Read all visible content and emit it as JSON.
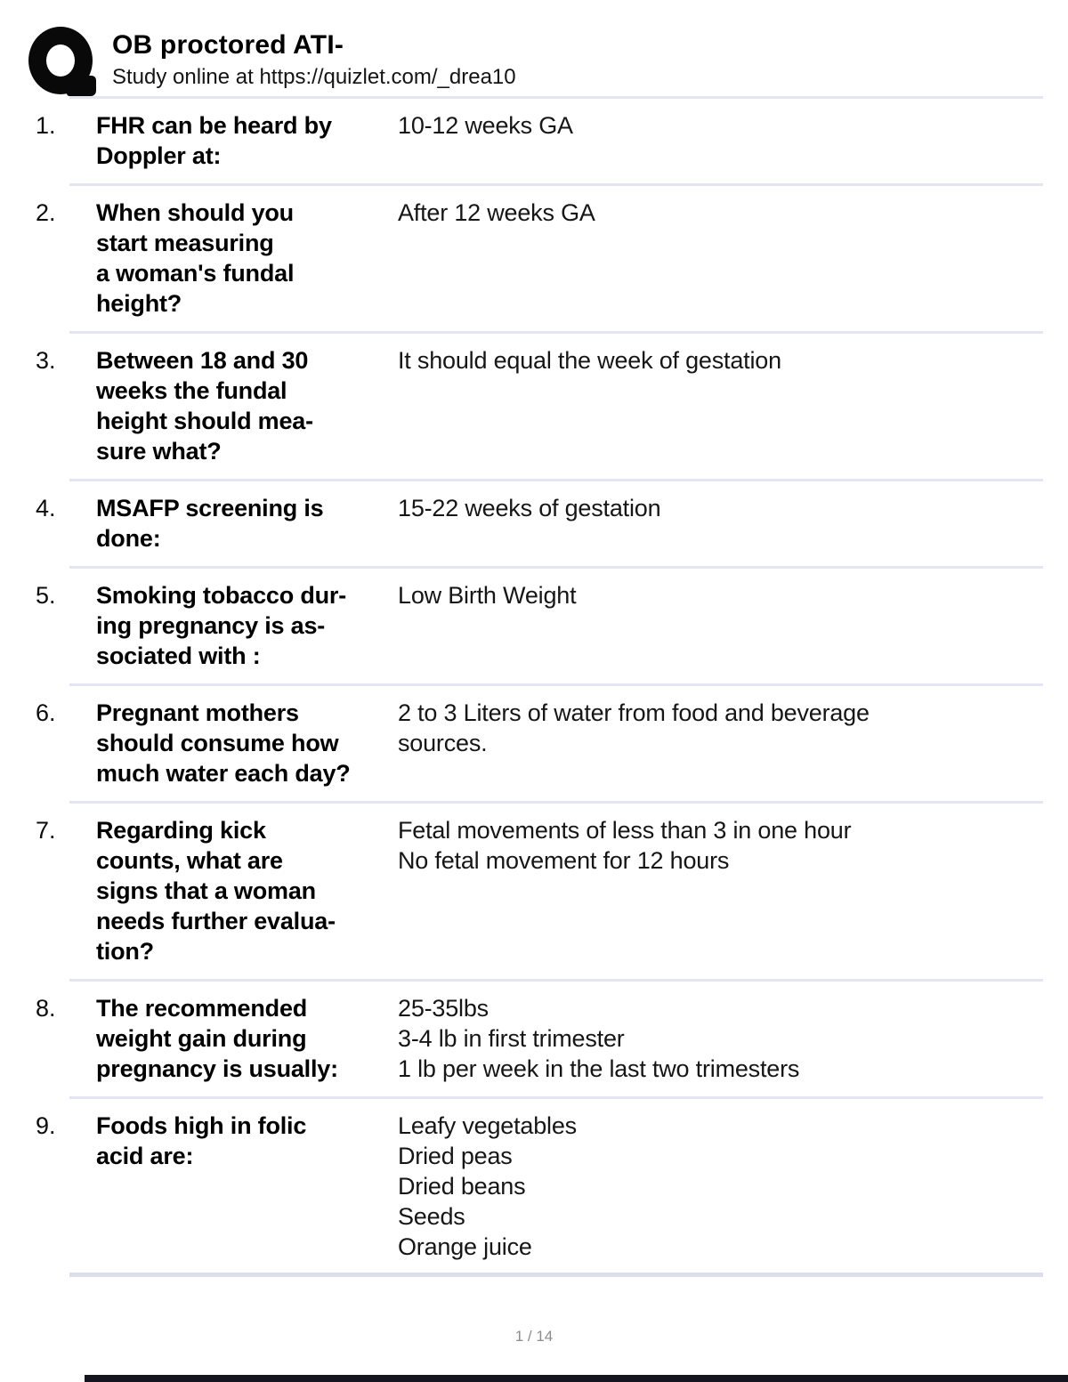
{
  "header": {
    "title": "OB proctored ATI-",
    "subtitle": "Study online at https://quizlet.com/_drea10",
    "logo": "quizlet-q-logo"
  },
  "qa": [
    {
      "num": "1.",
      "question": "FHR can be heard by\nDoppler at:",
      "answer": "10-12 weeks GA"
    },
    {
      "num": "2.",
      "question": "When should you\nstart measuring\na woman's fundal\nheight?",
      "answer": "After 12 weeks GA"
    },
    {
      "num": "3.",
      "question": "Between 18 and 30\nweeks the fundal\nheight should mea-\nsure what?",
      "answer": "It should equal the week of gestation"
    },
    {
      "num": "4.",
      "question": "MSAFP screening is\ndone:",
      "answer": "15-22 weeks of gestation"
    },
    {
      "num": "5.",
      "question": "Smoking tobacco dur-\ning pregnancy is as-\nsociated with :",
      "answer": "Low Birth Weight"
    },
    {
      "num": "6.",
      "question": "Pregnant mothers\nshould consume how\nmuch water each day?",
      "answer": "2 to 3 Liters of water from food and beverage\nsources."
    },
    {
      "num": "7.",
      "question": "Regarding kick\ncounts, what are\nsigns that a woman\nneeds further evalua-\ntion?",
      "answer": "Fetal movements of less than 3 in one hour\nNo fetal movement for 12 hours"
    },
    {
      "num": "8.",
      "question": "The recommended\nweight gain during\npregnancy is usually:",
      "answer": "25-35lbs\n3-4 lb in first trimester\n1 lb per week in the last two trimesters"
    },
    {
      "num": "9.",
      "question": "Foods high in folic\nacid are:",
      "answer": "Leafy vegetables\nDried peas\nDried beans\nSeeds\nOrange juice"
    }
  ],
  "footer": {
    "page_indicator": "1 / 14"
  },
  "colors": {
    "divider": "#e3e6f0",
    "divider_final": "#dcdfe9",
    "question_text": "#000000",
    "answer_text": "#161616",
    "footer_text": "#8c8c8c",
    "bottom_bar": "#15151f",
    "logo": "#090909"
  }
}
